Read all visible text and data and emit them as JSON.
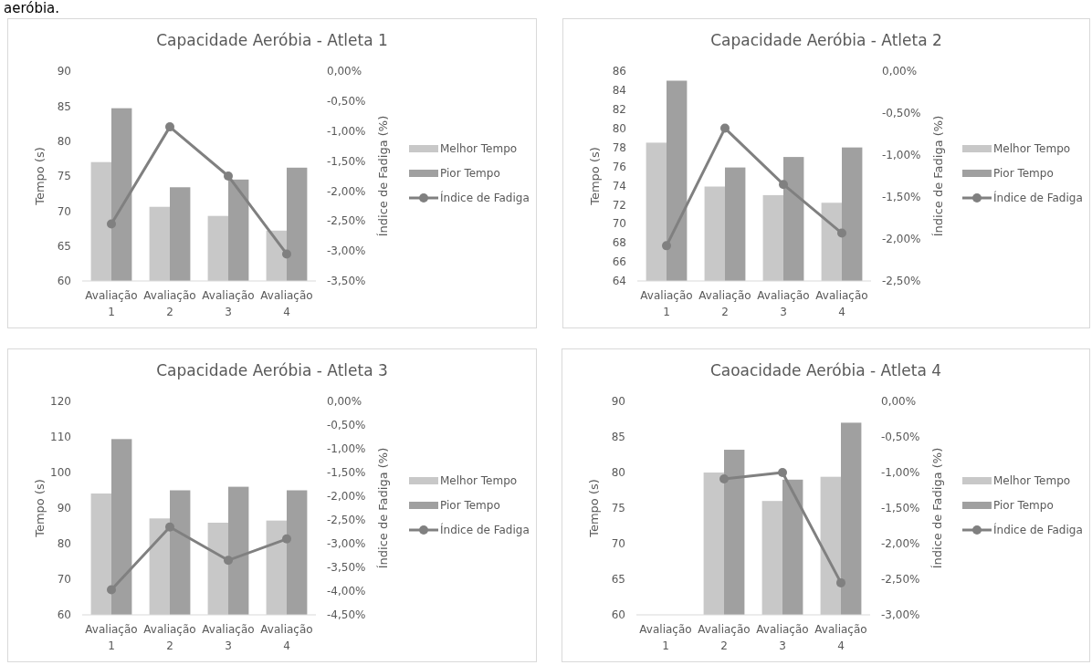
{
  "chart_data": [
    {
      "type": "bar",
      "title": "Capacidade Aeróbia - Atleta 1",
      "annotations": [
        "aeróbia."
      ],
      "categories": [
        "Avaliação 1",
        "Avaliação 2",
        "Avaliação 3",
        "Avaliação 4"
      ],
      "ylabel": "Tempo (s)",
      "y2label": "Índice de Fadiga (%)",
      "ylim": [
        60,
        90
      ],
      "yticks": [
        60,
        65,
        70,
        75,
        80,
        85,
        90
      ],
      "y2lim": [
        -3.5,
        0
      ],
      "y2ticks": [
        {
          "value": -3.5,
          "label": "-3,50%"
        },
        {
          "value": -3,
          "label": "-3,00%"
        },
        {
          "value": -2.5,
          "label": "-2,50%"
        },
        {
          "value": -2,
          "label": "-2,00%"
        },
        {
          "value": -1.5,
          "label": "-1,50%"
        },
        {
          "value": -1,
          "label": "-1,00%"
        },
        {
          "value": -0.5,
          "label": "-0,50%"
        },
        {
          "value": 0,
          "label": "0,00%"
        }
      ],
      "legend": "right",
      "marker": "circle",
      "line_style": "solid",
      "series": [
        {
          "name": "Melhor Tempo",
          "color": "#c8c8c8",
          "values": [
            77.0,
            70.6,
            69.3,
            67.2
          ]
        },
        {
          "name": "Pior Tempo",
          "color": "#a0a0a0",
          "values": [
            84.7,
            73.4,
            74.5,
            76.2
          ]
        },
        {
          "name": "Índice de Fadiga",
          "type": "line",
          "axis": "y2",
          "color": "#808080",
          "values": [
            -2.55,
            -0.93,
            -1.75,
            -3.05
          ]
        }
      ]
    },
    {
      "type": "bar",
      "title": "Capacidade Aeróbia - Atleta 2",
      "categories": [
        "Avaliação 1",
        "Avaliação 2",
        "Avaliação 3",
        "Avaliação 4"
      ],
      "ylabel": "Tempo (s)",
      "y2label": "Índice de Fadiga (%)",
      "ylim": [
        64,
        86
      ],
      "yticks": [
        64,
        66,
        68,
        70,
        72,
        74,
        76,
        78,
        80,
        82,
        84,
        86
      ],
      "y2lim": [
        -2.5,
        0
      ],
      "y2ticks": [
        {
          "value": -2.5,
          "label": "-2,50%"
        },
        {
          "value": -2,
          "label": "-2,00%"
        },
        {
          "value": -1.5,
          "label": "-1,50%"
        },
        {
          "value": -1,
          "label": "-1,00%"
        },
        {
          "value": -0.5,
          "label": "-0,50%"
        },
        {
          "value": 0,
          "label": "0,00%"
        }
      ],
      "legend": "right",
      "marker": "circle",
      "line_style": "solid",
      "series": [
        {
          "name": "Melhor Tempo",
          "color": "#c8c8c8",
          "values": [
            78.5,
            73.9,
            73.0,
            72.2
          ]
        },
        {
          "name": "Pior Tempo",
          "color": "#a0a0a0",
          "values": [
            85.0,
            75.9,
            77.0,
            78.0
          ]
        },
        {
          "name": "Índice de Fadiga",
          "type": "line",
          "axis": "y2",
          "color": "#808080",
          "values": [
            -2.08,
            -0.68,
            -1.35,
            -1.93
          ]
        }
      ]
    },
    {
      "type": "bar",
      "title": "Capacidade Aeróbia - Atleta 3",
      "categories": [
        "Avaliação 1",
        "Avaliação 2",
        "Avaliação 3",
        "Avaliação 4"
      ],
      "ylabel": "Tempo (s)",
      "y2label": "Índice de Fadiga (%)",
      "ylim": [
        60,
        120
      ],
      "yticks": [
        60,
        70,
        80,
        90,
        100,
        110,
        120
      ],
      "y2lim": [
        -4.5,
        0
      ],
      "y2ticks": [
        {
          "value": -4.5,
          "label": "-4,50%"
        },
        {
          "value": -4,
          "label": "-4,00%"
        },
        {
          "value": -3.5,
          "label": "-3,50%"
        },
        {
          "value": -3,
          "label": "-3,00%"
        },
        {
          "value": -2.5,
          "label": "-2,50%"
        },
        {
          "value": -2,
          "label": "-2,00%"
        },
        {
          "value": -1.5,
          "label": "-1,50%"
        },
        {
          "value": -1,
          "label": "-1,00%"
        },
        {
          "value": -0.5,
          "label": "-0,50%"
        },
        {
          "value": 0,
          "label": "0,00%"
        }
      ],
      "legend": "right",
      "marker": "circle",
      "line_style": "solid",
      "series": [
        {
          "name": "Melhor Tempo",
          "color": "#c8c8c8",
          "values": [
            94.1,
            87.1,
            85.9,
            86.5
          ]
        },
        {
          "name": "Pior Tempo",
          "color": "#a0a0a0",
          "values": [
            109.4,
            95.0,
            96.0,
            95.0
          ]
        },
        {
          "name": "Índice de Fadiga",
          "type": "line",
          "axis": "y2",
          "color": "#808080",
          "values": [
            -3.97,
            -2.65,
            -3.35,
            -2.9
          ]
        }
      ]
    },
    {
      "type": "bar",
      "title": "Caoacidade Aeróbia - Atleta 4",
      "categories": [
        "Avaliação 1",
        "Avaliação 2",
        "Avaliação 3",
        "Avaliação 4"
      ],
      "ylabel": "Tempo (s)",
      "y2label": "Índice de Fadiga (%)",
      "ylim": [
        60,
        90
      ],
      "yticks": [
        60,
        65,
        70,
        75,
        80,
        85,
        90
      ],
      "y2lim": [
        -3,
        0
      ],
      "y2ticks": [
        {
          "value": -3,
          "label": "-3,00%"
        },
        {
          "value": -2.5,
          "label": "-2,50%"
        },
        {
          "value": -2,
          "label": "-2,00%"
        },
        {
          "value": -1.5,
          "label": "-1,50%"
        },
        {
          "value": -1,
          "label": "-1,00%"
        },
        {
          "value": -0.5,
          "label": "-0,50%"
        },
        {
          "value": 0,
          "label": "0,00%"
        }
      ],
      "legend": "right",
      "marker": "circle",
      "line_style": "solid",
      "series": [
        {
          "name": "Melhor Tempo",
          "color": "#c8c8c8",
          "values": [
            60,
            80.0,
            76.0,
            79.4
          ]
        },
        {
          "name": "Pior Tempo",
          "color": "#a0a0a0",
          "values": [
            60,
            83.2,
            79.0,
            87.0
          ]
        },
        {
          "name": "Índice de Fadiga",
          "type": "line",
          "axis": "y2",
          "color": "#808080",
          "values": [
            null,
            -1.09,
            -1.0,
            -2.55
          ]
        }
      ]
    }
  ]
}
